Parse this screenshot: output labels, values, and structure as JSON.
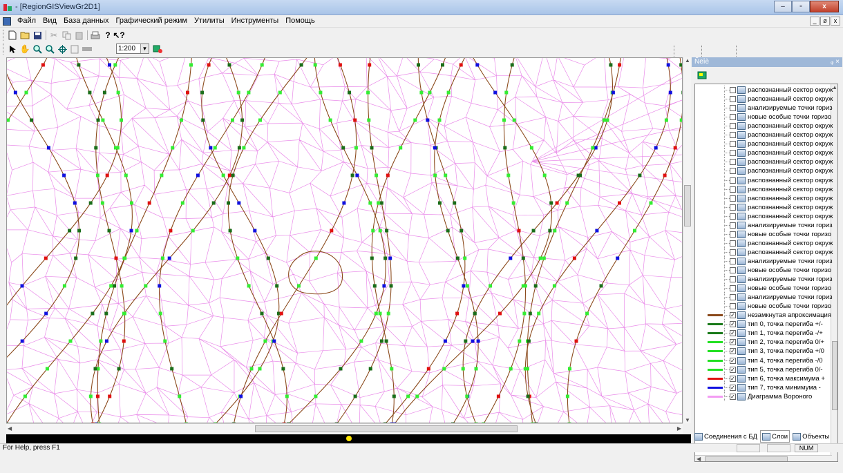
{
  "window": {
    "title": "- [RegionGISViewGr2D1]",
    "controls": {
      "minimize": "–",
      "maximize": "▫",
      "close": "x"
    }
  },
  "menu": [
    "Файл",
    "Вид",
    "База данных",
    "Графический режим",
    "Утилиты",
    "Инструменты",
    "Помощь"
  ],
  "mdi_controls": [
    "_",
    "ø",
    "x"
  ],
  "toolbar": {
    "scale_value": "1:200"
  },
  "panel": {
    "title": "Ñëîè",
    "pin": "ᵩ ×",
    "layers": [
      {
        "label": "распознанный сектор окруж",
        "checked": false,
        "swatch": ""
      },
      {
        "label": "распознанный сектор окруж",
        "checked": false,
        "swatch": ""
      },
      {
        "label": "анализируемые точки гориз",
        "checked": false,
        "swatch": ""
      },
      {
        "label": "новые особые точки горизо",
        "checked": false,
        "swatch": ""
      },
      {
        "label": "распознанный сектор окруж",
        "checked": false,
        "swatch": ""
      },
      {
        "label": "распознанный сектор окруж",
        "checked": false,
        "swatch": ""
      },
      {
        "label": "распознанный сектор окруж",
        "checked": false,
        "swatch": ""
      },
      {
        "label": "распознанный сектор окруж",
        "checked": false,
        "swatch": ""
      },
      {
        "label": "распознанный сектор окруж",
        "checked": false,
        "swatch": ""
      },
      {
        "label": "распознанный сектор окруж",
        "checked": false,
        "swatch": ""
      },
      {
        "label": "распознанный сектор окруж",
        "checked": false,
        "swatch": ""
      },
      {
        "label": "распознанный сектор окруж",
        "checked": false,
        "swatch": ""
      },
      {
        "label": "распознанный сектор окруж",
        "checked": false,
        "swatch": ""
      },
      {
        "label": "распознанный сектор окруж",
        "checked": false,
        "swatch": ""
      },
      {
        "label": "распознанный сектор окруж",
        "checked": false,
        "swatch": ""
      },
      {
        "label": "анализируемые точки гориз",
        "checked": false,
        "swatch": ""
      },
      {
        "label": "новые особые точки горизо",
        "checked": false,
        "swatch": ""
      },
      {
        "label": "распознанный сектор окруж",
        "checked": false,
        "swatch": ""
      },
      {
        "label": "распознанный сектор окруж",
        "checked": false,
        "swatch": ""
      },
      {
        "label": "анализируемые точки гориз",
        "checked": false,
        "swatch": ""
      },
      {
        "label": "новые особые точки горизо",
        "checked": false,
        "swatch": ""
      },
      {
        "label": "анализируемые точки гориз",
        "checked": false,
        "swatch": ""
      },
      {
        "label": "новые особые точки горизо",
        "checked": false,
        "swatch": ""
      },
      {
        "label": "анализируемые точки гориз",
        "checked": false,
        "swatch": ""
      },
      {
        "label": "новые особые точки горизо",
        "checked": false,
        "swatch": ""
      },
      {
        "label": "незамкнутая апроксимация",
        "checked": true,
        "swatch": "#8b4a1c"
      },
      {
        "label": "тип 0, точка перегиба +/-",
        "checked": true,
        "swatch": "#1a7a1a"
      },
      {
        "label": "тип 1, точка перегиба -/+",
        "checked": true,
        "swatch": "#1a7a1a"
      },
      {
        "label": "тип 2, точка перегиба 0/+",
        "checked": true,
        "swatch": "#22e022"
      },
      {
        "label": "тип 3, точка перегиба +/0",
        "checked": true,
        "swatch": "#22e022"
      },
      {
        "label": "тип 4, точка перегиба -/0",
        "checked": true,
        "swatch": "#22e022"
      },
      {
        "label": "тип 5, точка перегиба 0/-",
        "checked": true,
        "swatch": "#22e022"
      },
      {
        "label": "тип 6, точка максимума +",
        "checked": true,
        "swatch": "#e01010"
      },
      {
        "label": "тип 7, точка минимума  -",
        "checked": true,
        "swatch": "#1010e0"
      },
      {
        "label": "Диаграмма Вороного",
        "checked": true,
        "swatch": "#f39cf3"
      }
    ],
    "tabs": [
      "Соединения с БД",
      "Слои",
      "Объекты"
    ]
  },
  "status": {
    "help": "For Help, press F1",
    "num": "NUM"
  },
  "colors": {
    "contour": "#8b4a1c",
    "voronoi": "#e98be9",
    "point_type_0_1": "#1a6e1a",
    "point_type_2_5": "#33ee33",
    "point_max": "#e01010",
    "point_min": "#1010e0"
  }
}
